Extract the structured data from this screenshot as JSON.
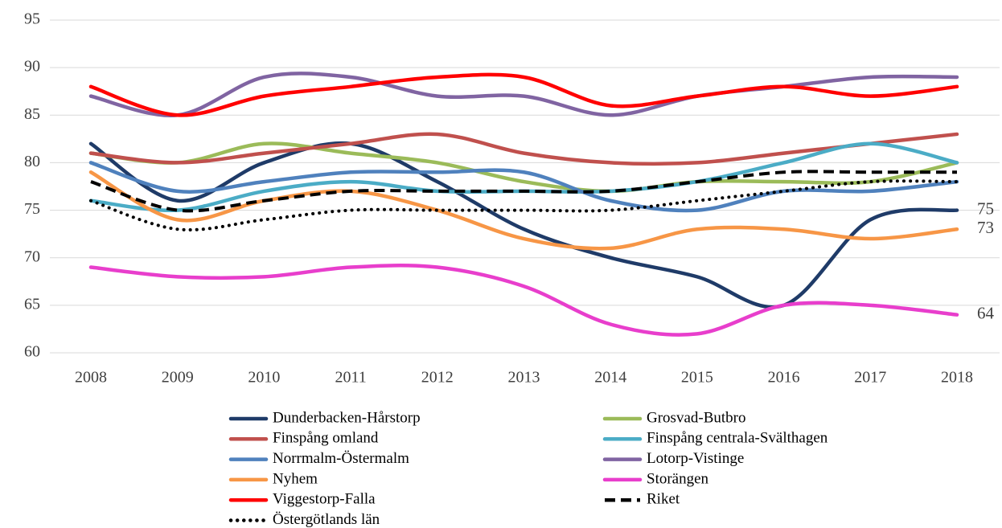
{
  "chart_data": {
    "type": "line",
    "x": [
      2008,
      2009,
      2010,
      2011,
      2012,
      2013,
      2014,
      2015,
      2016,
      2017,
      2018
    ],
    "ylim": [
      60,
      95
    ],
    "yticks": [
      60,
      65,
      70,
      75,
      80,
      85,
      90,
      95
    ],
    "grid": true,
    "smooth": true,
    "series": [
      {
        "name": "Dunderbacken-Hårstorp",
        "color": "#1f3b68",
        "style": "solid",
        "end_label": true,
        "values": [
          82,
          76,
          80,
          82,
          78,
          73,
          70,
          68,
          65,
          74,
          75
        ]
      },
      {
        "name": "Grosvad-Butbro",
        "color": "#9bbb59",
        "style": "solid",
        "values": [
          81,
          80,
          82,
          81,
          80,
          78,
          77,
          78,
          78,
          78,
          80
        ]
      },
      {
        "name": "Finspång omland",
        "color": "#c0504d",
        "style": "solid",
        "values": [
          81,
          80,
          81,
          82,
          83,
          81,
          80,
          80,
          81,
          82,
          83
        ]
      },
      {
        "name": "Finspång centrala-Svälthagen",
        "color": "#4bacc6",
        "style": "solid",
        "values": [
          76,
          75,
          77,
          78,
          77,
          77,
          77,
          78,
          80,
          82,
          80
        ]
      },
      {
        "name": "Norrmalm-Östermalm",
        "color": "#4f81bd",
        "style": "solid",
        "values": [
          80,
          77,
          78,
          79,
          79,
          79,
          76,
          75,
          77,
          77,
          78
        ]
      },
      {
        "name": "Lotorp-Vistinge",
        "color": "#8064a2",
        "style": "solid",
        "values": [
          87,
          85,
          89,
          89,
          87,
          87,
          85,
          87,
          88,
          89,
          89
        ]
      },
      {
        "name": "Nyhem",
        "color": "#f79646",
        "style": "solid",
        "end_label": true,
        "values": [
          79,
          74,
          76,
          77,
          75,
          72,
          71,
          73,
          73,
          72,
          73
        ]
      },
      {
        "name": "Storängen",
        "color": "#e83ecc",
        "style": "solid",
        "end_label": true,
        "values": [
          69,
          68,
          68,
          69,
          69,
          67,
          63,
          62,
          65,
          65,
          64
        ]
      },
      {
        "name": "Viggestorp-Falla",
        "color": "#ff0000",
        "style": "solid",
        "values": [
          88,
          85,
          87,
          88,
          89,
          89,
          86,
          87,
          88,
          87,
          88
        ]
      },
      {
        "name": "Riket",
        "color": "#000000",
        "style": "dashed",
        "values": [
          78,
          75,
          76,
          77,
          77,
          77,
          77,
          78,
          79,
          79,
          79
        ]
      },
      {
        "name": "Östergötlands län",
        "color": "#000000",
        "style": "dotted",
        "values": [
          76,
          73,
          74,
          75,
          75,
          75,
          75,
          76,
          77,
          78,
          78
        ]
      }
    ]
  }
}
